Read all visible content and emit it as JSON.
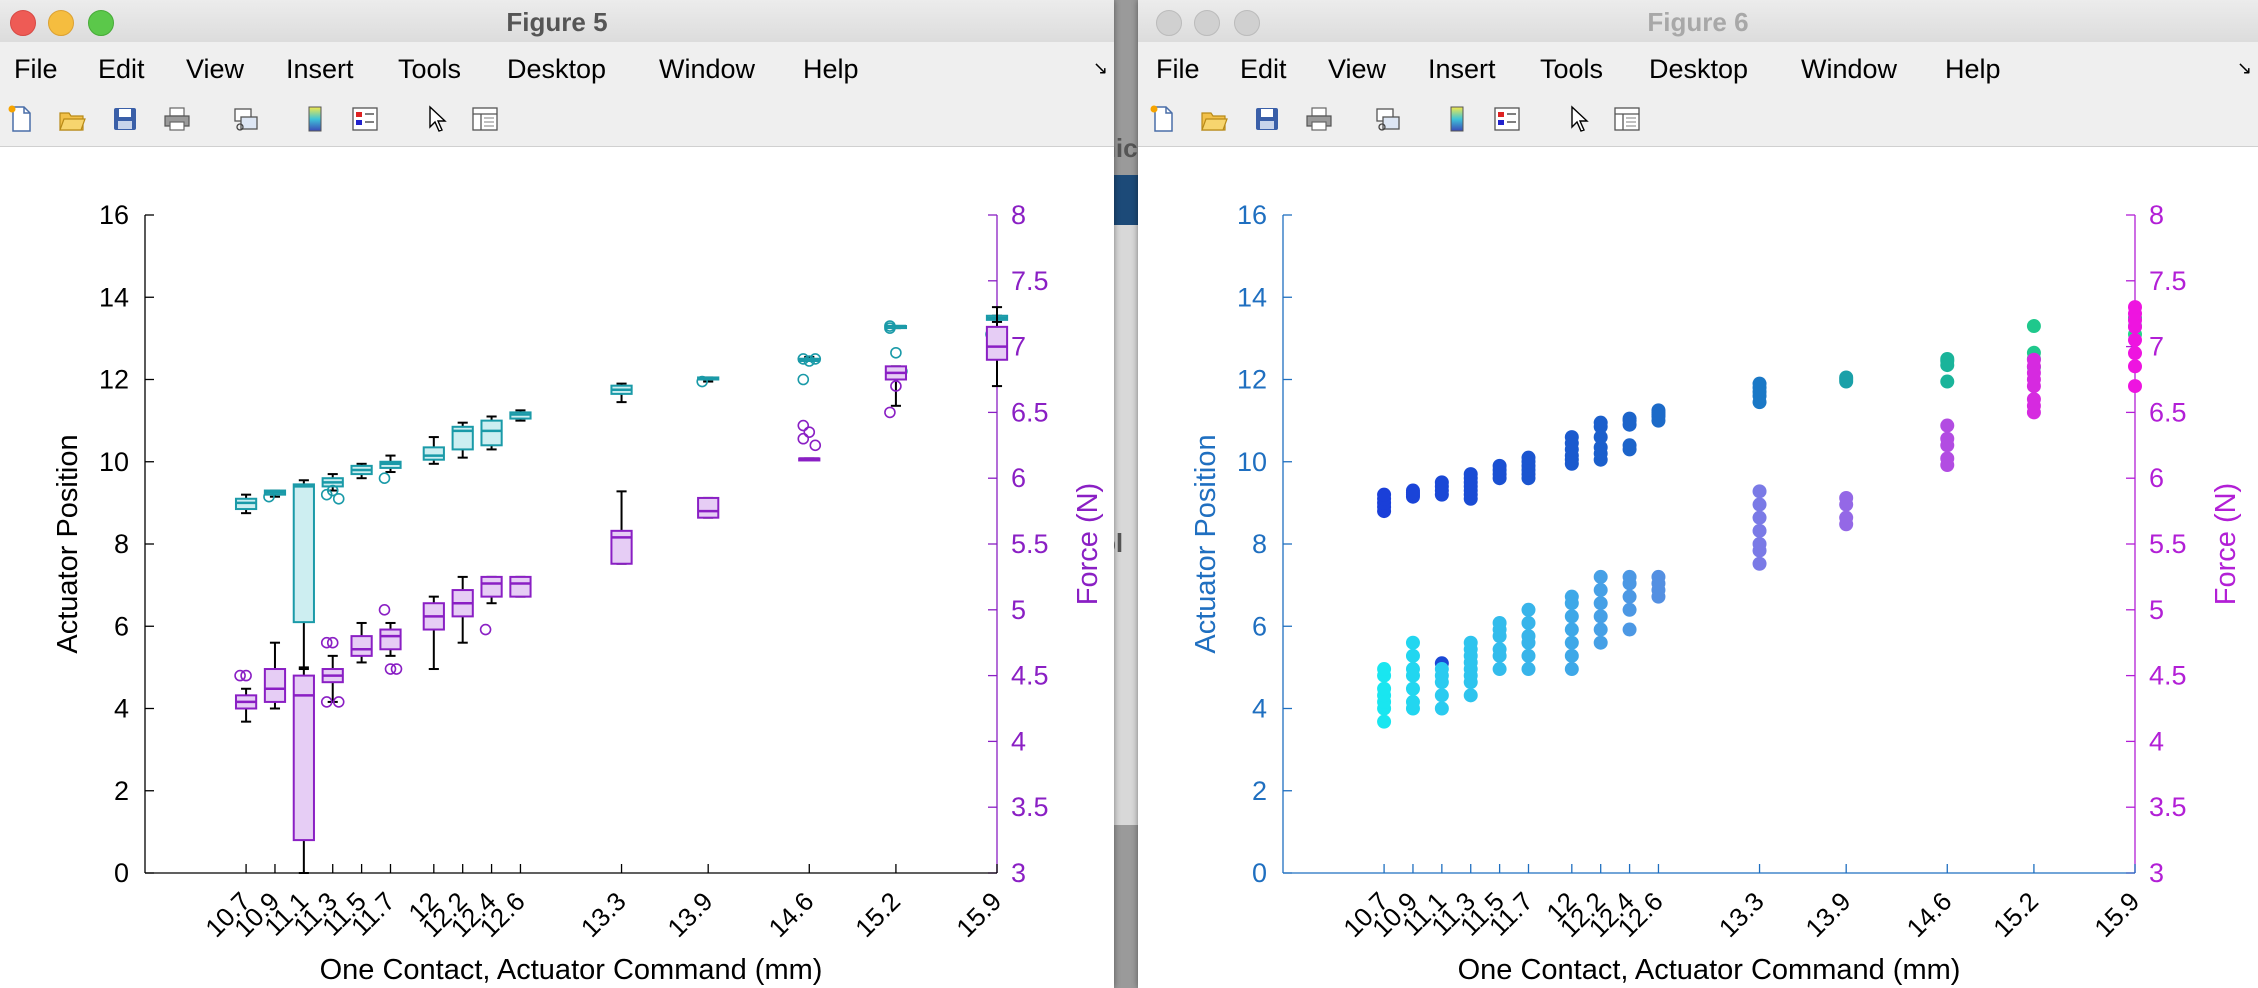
{
  "background_window": {
    "fragments": [
      "nic",
      "pl"
    ]
  },
  "windows": [
    {
      "title": "Figure 5",
      "menu": [
        "File",
        "Edit",
        "View",
        "Insert",
        "Tools",
        "Desktop",
        "Window",
        "Help"
      ],
      "toolbar_icons": [
        "new-figure-icon",
        "open-file-icon",
        "save-icon",
        "print-icon",
        "link-icon",
        "colorbar-icon",
        "legend-icon",
        "pointer-icon",
        "property-inspector-icon"
      ]
    },
    {
      "title": "Figure 6",
      "menu": [
        "File",
        "Edit",
        "View",
        "Insert",
        "Tools",
        "Desktop",
        "Window",
        "Help"
      ],
      "toolbar_icons": [
        "new-figure-icon",
        "open-file-icon",
        "save-icon",
        "print-icon",
        "link-icon",
        "colorbar-icon",
        "legend-icon",
        "pointer-icon",
        "property-inspector-icon"
      ]
    }
  ],
  "chart_data": [
    {
      "type": "box",
      "title": "",
      "xlabel": "One Contact, Actuator Command (mm)",
      "ylabel_left": "Actuator Position",
      "ylabel_right": "Force (N)",
      "x_ticks": [
        10.7,
        10.9,
        11.1,
        11.3,
        11.5,
        11.7,
        12,
        12.2,
        12.4,
        12.6,
        13.3,
        13.9,
        14.6,
        15.2,
        15.9
      ],
      "x_tick_labels": [
        "10.7",
        "10.9",
        "11.1",
        "11.3",
        "11.5",
        "11.7",
        "12",
        "12.2",
        "12.4",
        "12.6",
        "13.3",
        "13.9",
        "14.6",
        "15.2",
        "15.9"
      ],
      "xlim": [
        10.0,
        15.9
      ],
      "ylim_left": [
        0,
        16
      ],
      "y_ticks_left": [
        "0",
        "2",
        "4",
        "6",
        "8",
        "10",
        "12",
        "14",
        "16"
      ],
      "ylim_right": [
        3,
        8
      ],
      "y_ticks_right": [
        "3",
        "3.5",
        "4",
        "4.5",
        "5",
        "5.5",
        "6",
        "6.5",
        "7",
        "7.5",
        "8"
      ],
      "colors": {
        "left_axis": "#000000",
        "right_axis": "#8a1fc4",
        "position_box": "#1a9aa8",
        "force_box": "#8a1fc4"
      },
      "series": [
        {
          "axis": "left",
          "boxes": [
            {
              "x": 10.7,
              "min": 8.75,
              "q1": 8.85,
              "median": 9.0,
              "q3": 9.1,
              "max": 9.2,
              "outliers": []
            },
            {
              "x": 10.9,
              "min": 9.15,
              "q1": 9.2,
              "median": 9.25,
              "q3": 9.3,
              "max": 9.3,
              "outliers": [
                9.15
              ]
            },
            {
              "x": 11.1,
              "min": 5.0,
              "q1": 6.1,
              "median": 9.4,
              "q3": 9.45,
              "max": 9.55,
              "outliers": []
            },
            {
              "x": 11.3,
              "min": 9.3,
              "q1": 9.4,
              "median": 9.5,
              "q3": 9.6,
              "max": 9.7,
              "outliers": [
                9.2,
                9.3,
                9.1
              ]
            },
            {
              "x": 11.5,
              "min": 9.6,
              "q1": 9.7,
              "median": 9.8,
              "q3": 9.9,
              "max": 9.95,
              "outliers": []
            },
            {
              "x": 11.7,
              "min": 9.75,
              "q1": 9.85,
              "median": 9.95,
              "q3": 10.0,
              "max": 10.15,
              "outliers": [
                9.6
              ]
            },
            {
              "x": 12.0,
              "min": 9.95,
              "q1": 10.05,
              "median": 10.15,
              "q3": 10.35,
              "max": 10.6,
              "outliers": []
            },
            {
              "x": 12.2,
              "min": 10.1,
              "q1": 10.3,
              "median": 10.75,
              "q3": 10.85,
              "max": 10.95,
              "outliers": []
            },
            {
              "x": 12.4,
              "min": 10.3,
              "q1": 10.4,
              "median": 10.75,
              "q3": 11.0,
              "max": 11.1,
              "outliers": []
            },
            {
              "x": 12.6,
              "min": 11.0,
              "q1": 11.05,
              "median": 11.15,
              "q3": 11.2,
              "max": 11.25,
              "outliers": []
            },
            {
              "x": 13.3,
              "min": 11.45,
              "q1": 11.65,
              "median": 11.75,
              "q3": 11.85,
              "max": 11.9,
              "outliers": []
            },
            {
              "x": 13.9,
              "min": 11.95,
              "q1": 12.0,
              "median": 12.02,
              "q3": 12.05,
              "max": 12.05,
              "outliers": [
                11.95
              ]
            },
            {
              "x": 14.6,
              "min": 12.45,
              "q1": 12.45,
              "median": 12.5,
              "q3": 12.5,
              "max": 12.55,
              "outliers": [
                12.5,
                12.45,
                12.5,
                12.0
              ]
            },
            {
              "x": 15.2,
              "min": 13.25,
              "q1": 13.25,
              "median": 13.3,
              "q3": 13.3,
              "max": 13.3,
              "outliers": [
                13.3,
                12.65,
                12.2,
                13.25
              ]
            },
            {
              "x": 15.9,
              "min": 13.4,
              "q1": 13.45,
              "median": 13.5,
              "q3": 13.55,
              "max": 13.55,
              "outliers": [
                13.1
              ]
            }
          ]
        },
        {
          "axis": "right",
          "boxes": [
            {
              "x": 10.7,
              "min": 4.15,
              "q1": 4.25,
              "median": 4.3,
              "q3": 4.35,
              "max": 4.4,
              "outliers": [
                4.5,
                4.5
              ]
            },
            {
              "x": 10.9,
              "min": 4.25,
              "q1": 4.3,
              "median": 4.4,
              "q3": 4.55,
              "max": 4.75,
              "outliers": []
            },
            {
              "x": 11.1,
              "min": 3.0,
              "q1": 3.25,
              "median": 4.35,
              "q3": 4.5,
              "max": 4.55,
              "outliers": []
            },
            {
              "x": 11.3,
              "min": 4.3,
              "q1": 4.45,
              "median": 4.5,
              "q3": 4.55,
              "max": 4.65,
              "outliers": [
                4.75,
                4.75,
                4.3,
                4.3
              ]
            },
            {
              "x": 11.5,
              "min": 4.6,
              "q1": 4.65,
              "median": 4.7,
              "q3": 4.8,
              "max": 4.9,
              "outliers": []
            },
            {
              "x": 11.7,
              "min": 4.65,
              "q1": 4.7,
              "median": 4.8,
              "q3": 4.85,
              "max": 4.9,
              "outliers": [
                5.0,
                4.55,
                4.55
              ]
            },
            {
              "x": 12.0,
              "min": 4.55,
              "q1": 4.85,
              "median": 4.95,
              "q3": 5.05,
              "max": 5.1,
              "outliers": []
            },
            {
              "x": 12.2,
              "min": 4.75,
              "q1": 4.95,
              "median": 5.05,
              "q3": 5.15,
              "max": 5.25,
              "outliers": []
            },
            {
              "x": 12.4,
              "min": 5.05,
              "q1": 5.1,
              "median": 5.2,
              "q3": 5.25,
              "max": 5.25,
              "outliers": [
                4.85
              ]
            },
            {
              "x": 12.6,
              "min": 5.1,
              "q1": 5.1,
              "median": 5.2,
              "q3": 5.25,
              "max": 5.25,
              "outliers": []
            },
            {
              "x": 13.3,
              "min": 5.35,
              "q1": 5.35,
              "median": 5.55,
              "q3": 5.6,
              "max": 5.9,
              "outliers": []
            },
            {
              "x": 13.9,
              "min": 5.7,
              "q1": 5.7,
              "median": 5.75,
              "q3": 5.85,
              "max": 5.85,
              "outliers": []
            },
            {
              "x": 14.6,
              "min": 6.15,
              "q1": 6.15,
              "median": 6.15,
              "q3": 6.15,
              "max": 6.15,
              "outliers": [
                6.3,
                6.35,
                6.25,
                6.4
              ]
            },
            {
              "x": 15.2,
              "min": 6.55,
              "q1": 6.75,
              "median": 6.8,
              "q3": 6.85,
              "max": 6.85,
              "outliers": [
                6.5,
                6.7
              ]
            },
            {
              "x": 15.9,
              "min": 6.7,
              "q1": 6.9,
              "median": 7.0,
              "q3": 7.15,
              "max": 7.3,
              "outliers": []
            }
          ]
        }
      ]
    },
    {
      "type": "scatter",
      "title": "",
      "xlabel": "One Contact, Actuator Command (mm)",
      "ylabel_left": "Actuator Position",
      "ylabel_right": "Force (N)",
      "x_ticks": [
        10.7,
        10.9,
        11.1,
        11.3,
        11.5,
        11.7,
        12,
        12.2,
        12.4,
        12.6,
        13.3,
        13.9,
        14.6,
        15.2,
        15.9
      ],
      "x_tick_labels": [
        "10.7",
        "10.9",
        "11.1",
        "11.3",
        "11.5",
        "11.7",
        "12",
        "12.2",
        "12.4",
        "12.6",
        "13.3",
        "13.9",
        "14.6",
        "15.2",
        "15.9"
      ],
      "xlim": [
        10.0,
        15.9
      ],
      "ylim_left": [
        0,
        16
      ],
      "y_ticks_left": [
        "0",
        "2",
        "4",
        "6",
        "8",
        "10",
        "12",
        "14",
        "16"
      ],
      "ylim_right": [
        3,
        8
      ],
      "y_ticks_right": [
        "3",
        "3.5",
        "4",
        "4.5",
        "5",
        "5.5",
        "6",
        "6.5",
        "7",
        "7.5",
        "8"
      ],
      "colors": {
        "left_axis": "#1f6fc0",
        "right_axis": "#b21fd6"
      },
      "series": [
        {
          "axis": "left",
          "points": [
            {
              "x": 10.7,
              "ys": [
                8.8,
                8.9,
                9.0,
                9.1,
                9.2
              ],
              "color": "#1a3fd8"
            },
            {
              "x": 10.9,
              "ys": [
                9.15,
                9.2,
                9.25,
                9.3
              ],
              "color": "#1a44d8"
            },
            {
              "x": 11.1,
              "ys": [
                5.1,
                9.2,
                9.3,
                9.4,
                9.5
              ],
              "color": "#1a48d6"
            },
            {
              "x": 11.3,
              "ys": [
                9.1,
                9.2,
                9.3,
                9.4,
                9.5,
                9.6,
                9.7
              ],
              "color": "#1a4cd4"
            },
            {
              "x": 11.5,
              "ys": [
                9.6,
                9.7,
                9.8,
                9.9
              ],
              "color": "#1a50d2"
            },
            {
              "x": 11.7,
              "ys": [
                9.6,
                9.7,
                9.8,
                9.9,
                10.0,
                10.1
              ],
              "color": "#1b55d0"
            },
            {
              "x": 12.0,
              "ys": [
                9.95,
                10.05,
                10.15,
                10.3,
                10.45,
                10.6
              ],
              "color": "#1b5ace"
            },
            {
              "x": 12.2,
              "ys": [
                10.05,
                10.2,
                10.35,
                10.6,
                10.85,
                10.95
              ],
              "color": "#1b5fcc"
            },
            {
              "x": 12.4,
              "ys": [
                10.3,
                10.4,
                10.9,
                11.0,
                11.05
              ],
              "color": "#1c64ca"
            },
            {
              "x": 12.6,
              "ys": [
                11.0,
                11.1,
                11.15,
                11.2,
                11.25
              ],
              "color": "#1c6ac8"
            },
            {
              "x": 13.3,
              "ys": [
                11.45,
                11.6,
                11.7,
                11.8,
                11.9
              ],
              "color": "#1a78c6"
            },
            {
              "x": 13.9,
              "ys": [
                11.95,
                12.0,
                12.05
              ],
              "color": "#1aa0a8"
            },
            {
              "x": 14.6,
              "ys": [
                11.95,
                12.35,
                12.45,
                12.5
              ],
              "color": "#1ab49a"
            },
            {
              "x": 15.2,
              "ys": [
                12.3,
                12.5,
                12.65,
                13.3
              ],
              "color": "#1fc88c"
            },
            {
              "x": 15.9,
              "ys": [
                13.1,
                13.3,
                13.5
              ],
              "color": "#22d886"
            }
          ]
        },
        {
          "axis": "right",
          "points": [
            {
              "x": 10.7,
              "ys": [
                4.15,
                4.25,
                4.3,
                4.35,
                4.4,
                4.5,
                4.55
              ],
              "color": "#19e6f0"
            },
            {
              "x": 10.9,
              "ys": [
                4.25,
                4.3,
                4.4,
                4.5,
                4.55,
                4.65,
                4.75
              ],
              "color": "#22d6f0"
            },
            {
              "x": 11.1,
              "ys": [
                4.25,
                4.35,
                4.45,
                4.5,
                4.55
              ],
              "color": "#2acbf0"
            },
            {
              "x": 11.3,
              "ys": [
                4.35,
                4.45,
                4.5,
                4.55,
                4.6,
                4.65,
                4.7,
                4.75
              ],
              "color": "#2ec4ee"
            },
            {
              "x": 11.5,
              "ys": [
                4.55,
                4.65,
                4.7,
                4.8,
                4.85,
                4.9
              ],
              "color": "#33bcec"
            },
            {
              "x": 11.7,
              "ys": [
                4.55,
                4.65,
                4.75,
                4.8,
                4.9,
                5.0
              ],
              "color": "#38b4ea"
            },
            {
              "x": 12.0,
              "ys": [
                4.55,
                4.65,
                4.75,
                4.85,
                4.95,
                5.05,
                5.1
              ],
              "color": "#3ea8e8"
            },
            {
              "x": 12.2,
              "ys": [
                4.75,
                4.85,
                4.95,
                5.05,
                5.15,
                5.25
              ],
              "color": "#46a0e6"
            },
            {
              "x": 12.4,
              "ys": [
                4.85,
                5.0,
                5.1,
                5.2,
                5.25
              ],
              "color": "#4c98e4"
            },
            {
              "x": 12.6,
              "ys": [
                5.1,
                5.15,
                5.2,
                5.25
              ],
              "color": "#5490e2"
            },
            {
              "x": 13.3,
              "ys": [
                5.35,
                5.45,
                5.5,
                5.6,
                5.7,
                5.8,
                5.9
              ],
              "color": "#7a7ae6"
            },
            {
              "x": 13.9,
              "ys": [
                5.65,
                5.7,
                5.8,
                5.85
              ],
              "color": "#9468e6"
            },
            {
              "x": 14.6,
              "ys": [
                6.1,
                6.15,
                6.25,
                6.3,
                6.4
              ],
              "color": "#b24ce2"
            },
            {
              "x": 15.2,
              "ys": [
                6.5,
                6.55,
                6.6,
                6.7,
                6.75,
                6.8,
                6.85,
                6.9
              ],
              "color": "#d62ae0"
            },
            {
              "x": 15.9,
              "ys": [
                6.7,
                6.85,
                6.95,
                7.05,
                7.15,
                7.2,
                7.25,
                7.3
              ],
              "color": "#ee14e0"
            }
          ]
        }
      ]
    }
  ]
}
